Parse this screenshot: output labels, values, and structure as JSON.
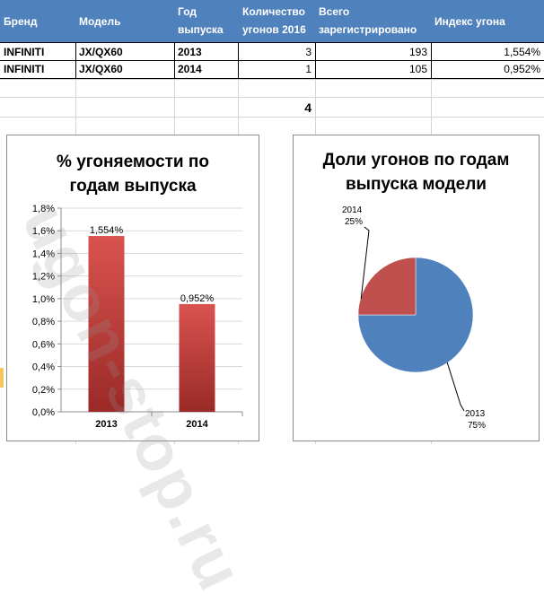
{
  "table": {
    "headers": {
      "brand": "Бренд",
      "model": "Модель",
      "year_line1": "Год",
      "year_line2": "выпуска",
      "count_line1": "Количество",
      "count_line2": "угонов 2016",
      "registered_line1": "Всего",
      "registered_line2": "зарегистрировано",
      "index": "Индекс угона"
    },
    "rows": [
      {
        "brand": "INFINITI",
        "model": "JX/QX60",
        "year": "2013",
        "count": "3",
        "registered": "193",
        "index": "1,554%"
      },
      {
        "brand": "INFINITI",
        "model": "JX/QX60",
        "year": "2014",
        "count": "1",
        "registered": "105",
        "index": "0,952%"
      }
    ],
    "total": "4"
  },
  "watermark": "ugon-stop.ru",
  "chart_data": [
    {
      "type": "bar",
      "title_lines": [
        "% угоняемости по",
        "годам выпуска"
      ],
      "categories": [
        "2013",
        "2014"
      ],
      "values": [
        1.554,
        0.952
      ],
      "data_labels": [
        "1,554%",
        "0,952%"
      ],
      "y_ticks": [
        "0,0%",
        "0,2%",
        "0,4%",
        "0,6%",
        "0,8%",
        "1,0%",
        "1,2%",
        "1,4%",
        "1,6%",
        "1,8%"
      ],
      "ylim": [
        0,
        1.8
      ],
      "grid": true,
      "bar_color": "#c0504d"
    },
    {
      "type": "pie",
      "title_lines": [
        "Доли угонов по годам",
        "выпуска модели"
      ],
      "labels": [
        "2013",
        "2014"
      ],
      "values": [
        75,
        25
      ],
      "data_labels": [
        "75%",
        "25%"
      ],
      "colors": [
        "#4f81bd",
        "#c0504d"
      ]
    }
  ],
  "colors": {
    "header": "#4f81bd",
    "bar": "#c0504d",
    "pie_blue": "#4f81bd",
    "pie_red": "#c0504d"
  }
}
